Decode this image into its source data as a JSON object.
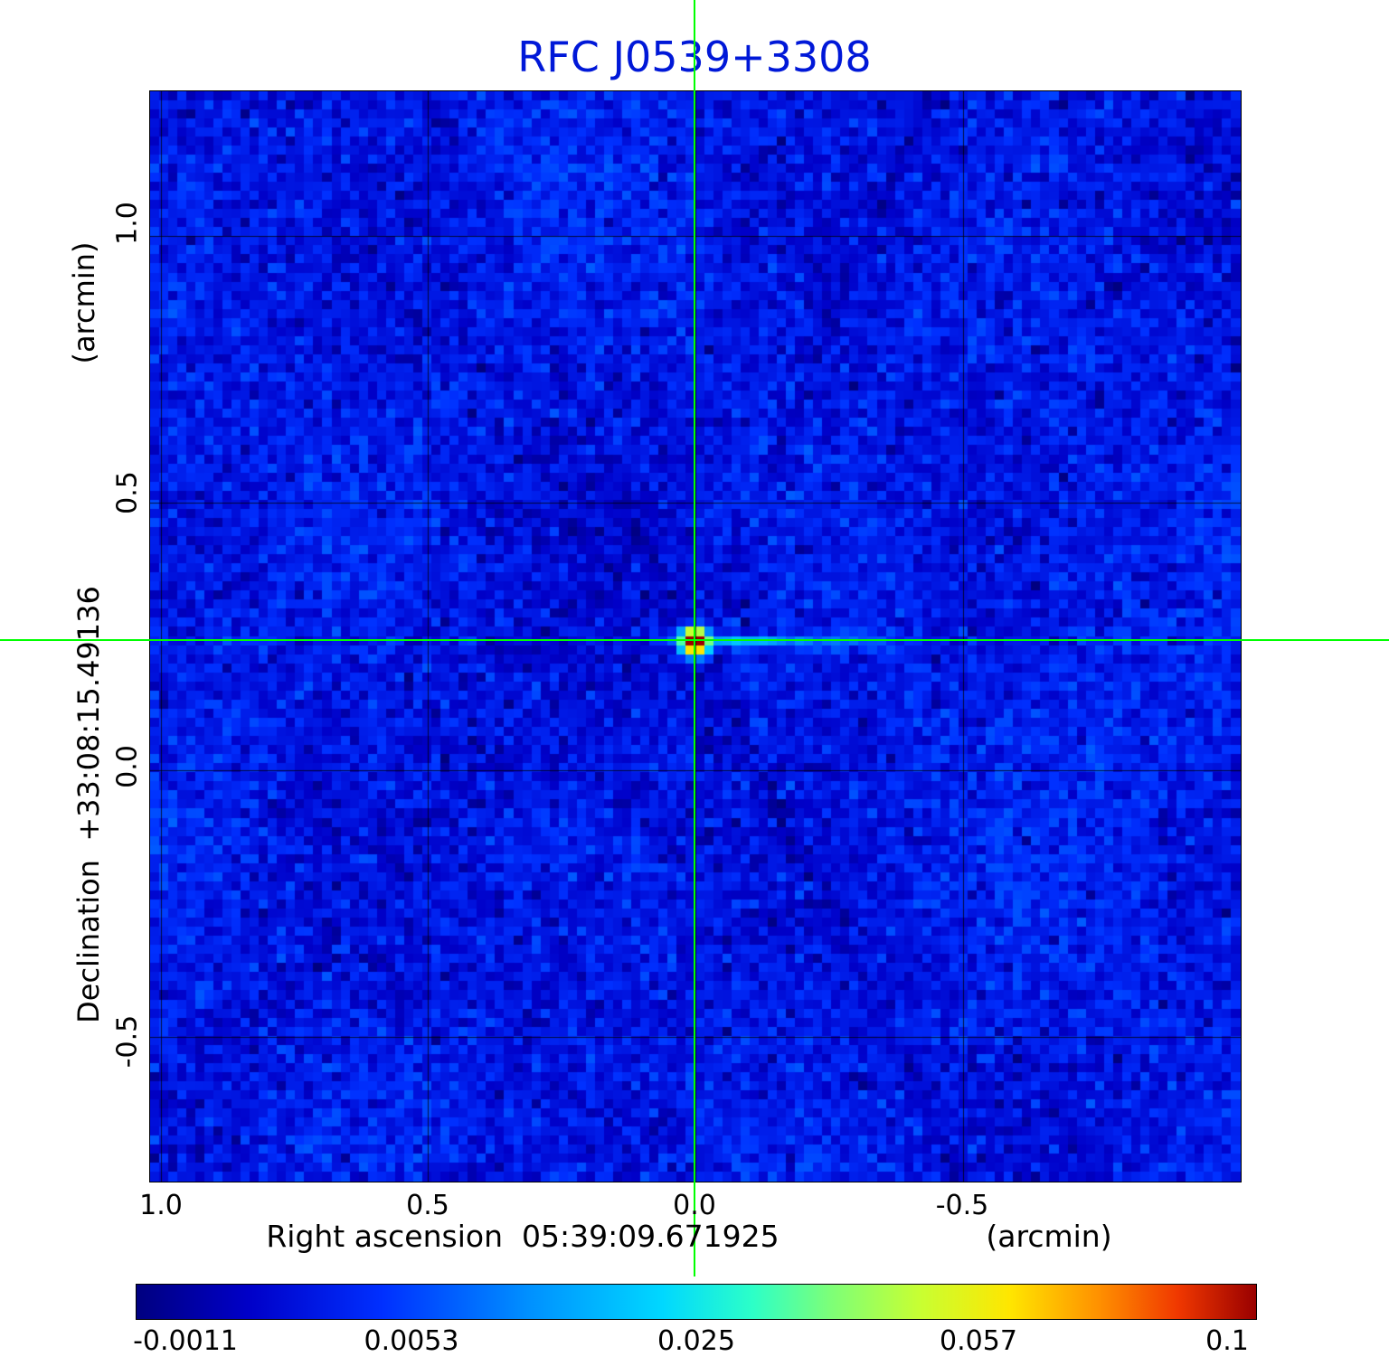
{
  "title": {
    "text": "RFC J0539+3308",
    "color": "#0018d8"
  },
  "y_axis": {
    "unit_label": "(arcmin)",
    "axis_label": "Declination  +33:08:15.49136",
    "ticks": [
      "1.0",
      "0.5",
      "0.0",
      "-0.5"
    ]
  },
  "x_axis": {
    "axis_label": "Right ascension  05:39:09.671925",
    "unit_label": "(arcmin)",
    "ticks": [
      "1.0",
      "0.5",
      "0.0",
      "-0.5"
    ]
  },
  "colorbar": {
    "labels": [
      "-0.0011",
      "0.0053",
      "0.025",
      "0.057",
      "0.1"
    ]
  },
  "chart_data": {
    "type": "heatmap",
    "title": "RFC J0539+3308",
    "x_label": "Right ascension 05:39:09.671925 (arcmin)",
    "y_label": "Declination +33:08:15.49136 (arcmin)",
    "x_range_arcmin": [
      1.02,
      -1.02
    ],
    "y_range_arcmin": [
      1.27,
      -0.77
    ],
    "x_ticks": [
      1.0,
      0.5,
      0.0,
      -0.5
    ],
    "y_ticks": [
      1.0,
      0.5,
      0.0,
      -0.5
    ],
    "grid": true,
    "colormap": "rainbow-jet",
    "scale": "nonlinear",
    "scale_anchors": {
      "values": [
        -0.0011,
        0.0053,
        0.025,
        0.057,
        0.1
      ],
      "positions": [
        0,
        0.25,
        0.5,
        0.75,
        1
      ]
    },
    "background_noise_level": 0.003,
    "noise_sigma": 0.0013,
    "source": {
      "ra_offset_arcmin": 0.0,
      "dec_offset_arcmin": 0.24,
      "peak_value": 0.1
    },
    "crosshair": {
      "x_arcmin": 0.0,
      "y_arcmin": 0.24,
      "color": "#00ff00"
    },
    "sidelobe_rays_deg": [
      64,
      -66.7,
      -40,
      -5
    ],
    "colormap_stops": [
      {
        "t": 0.0,
        "color": "#000080"
      },
      {
        "t": 0.1,
        "color": "#0000c8"
      },
      {
        "t": 0.22,
        "color": "#0030ff"
      },
      {
        "t": 0.35,
        "color": "#0090ff"
      },
      {
        "t": 0.47,
        "color": "#00d8ff"
      },
      {
        "t": 0.55,
        "color": "#2cffc8"
      },
      {
        "t": 0.62,
        "color": "#7dff78"
      },
      {
        "t": 0.7,
        "color": "#c8ff32"
      },
      {
        "t": 0.78,
        "color": "#ffe600"
      },
      {
        "t": 0.86,
        "color": "#ff9000"
      },
      {
        "t": 0.93,
        "color": "#f03800"
      },
      {
        "t": 1.0,
        "color": "#990000"
      }
    ]
  }
}
